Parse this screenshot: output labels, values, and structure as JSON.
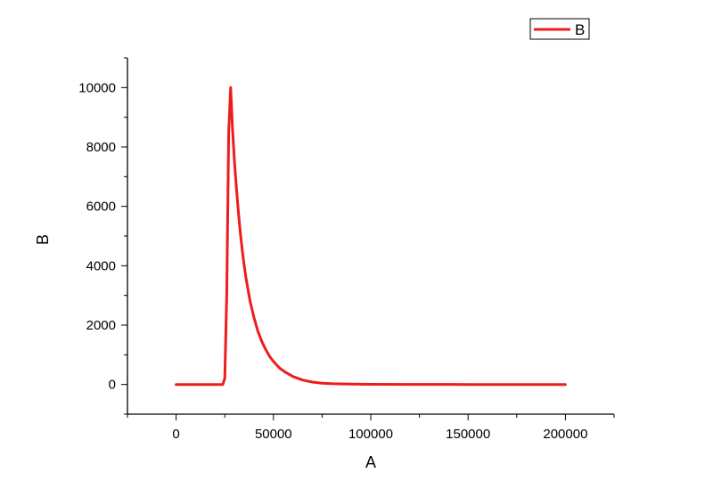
{
  "chart_data": {
    "type": "line",
    "xlabel": "A",
    "ylabel": "B",
    "xlim": [
      -25000,
      225000
    ],
    "ylim": [
      -1000,
      11000
    ],
    "x_ticks": [
      0,
      50000,
      100000,
      150000,
      200000
    ],
    "y_ticks": [
      0,
      2000,
      4000,
      6000,
      8000,
      10000
    ],
    "legend_position": "top-right",
    "grid": false,
    "series": [
      {
        "name": "B",
        "color": "#ee1c1c",
        "x": [
          0,
          10000,
          20000,
          24000,
          25000,
          26000,
          27000,
          28000,
          29000,
          30000,
          31000,
          32000,
          33000,
          34000,
          35000,
          36000,
          38000,
          40000,
          42000,
          44000,
          46000,
          48000,
          50000,
          53000,
          56000,
          60000,
          65000,
          70000,
          75000,
          80000,
          90000,
          100000,
          120000,
          150000,
          200000
        ],
        "values": [
          0,
          0,
          0,
          0,
          200,
          3000,
          8500,
          10000,
          8600,
          7500,
          6600,
          5800,
          5100,
          4500,
          4000,
          3550,
          2800,
          2250,
          1800,
          1450,
          1180,
          950,
          780,
          560,
          420,
          270,
          150,
          80,
          45,
          25,
          10,
          5,
          2,
          0,
          0
        ]
      }
    ]
  }
}
